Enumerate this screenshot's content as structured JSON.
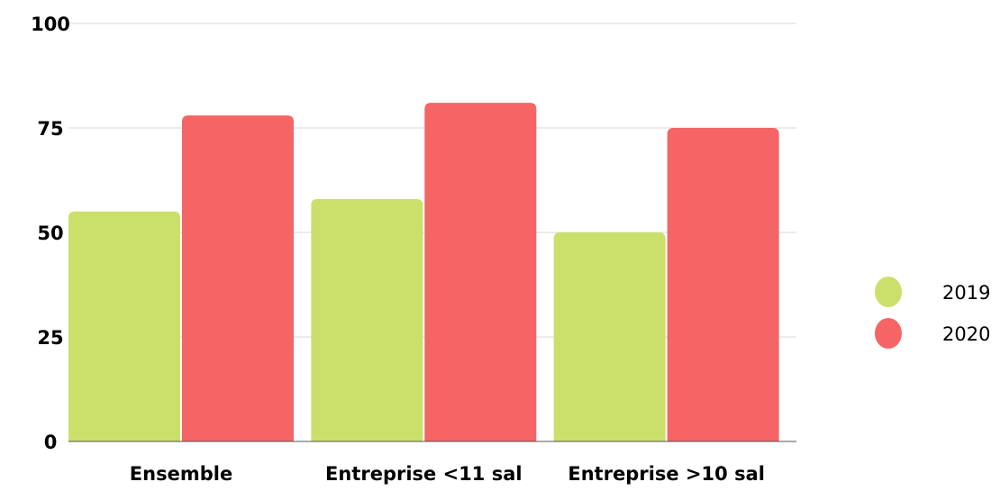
{
  "chart_data": {
    "type": "bar",
    "title": "",
    "xlabel": "",
    "ylabel": "",
    "ylim": [
      0,
      100
    ],
    "yticks": [
      0,
      25,
      50,
      75,
      100
    ],
    "grid": true,
    "legend_position": "right",
    "categories": [
      "Ensemble",
      "Entreprise <11 sal",
      "Entreprise >10 sal"
    ],
    "series": [
      {
        "name": "2019",
        "values": [
          55,
          58,
          50
        ],
        "color": "#cbe06a"
      },
      {
        "name": "2020",
        "values": [
          78,
          81,
          75
        ],
        "color": "#f56565"
      }
    ]
  }
}
